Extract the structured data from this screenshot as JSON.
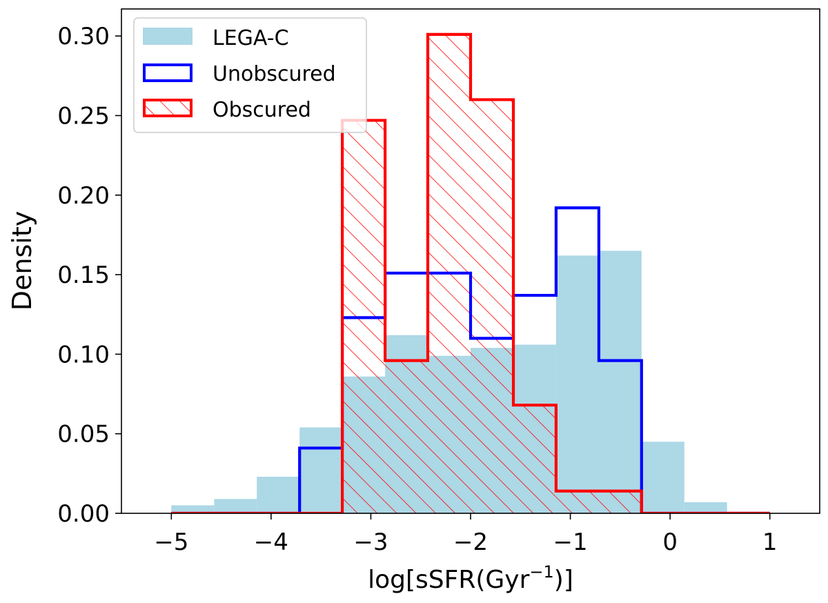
{
  "chart_data": {
    "type": "histogram",
    "xlabel": "log[sSFR(Gyr",
    "xlabel_sup": "−1",
    "xlabel_end": ")]",
    "ylabel": "Density",
    "xlim": [
      -5.5,
      1.5
    ],
    "ylim": [
      0.0,
      0.317
    ],
    "xticks": [
      -5,
      -4,
      -3,
      -2,
      -1,
      0,
      1
    ],
    "xtick_labels": [
      "−5",
      "−4",
      "−3",
      "−2",
      "−1",
      "0",
      "1"
    ],
    "yticks": [
      0.0,
      0.05,
      0.1,
      0.15,
      0.2,
      0.25,
      0.3
    ],
    "ytick_labels": [
      "0.00",
      "0.05",
      "0.10",
      "0.15",
      "0.20",
      "0.25",
      "0.30"
    ],
    "legend_position": "top-left",
    "series": [
      {
        "name": "LEGA-C",
        "style": "filled",
        "color": "#add8e6",
        "bin_edges": [
          -5.0,
          -4.571,
          -4.143,
          -3.714,
          -3.286,
          -2.857,
          -2.429,
          -2.0,
          -1.571,
          -1.143,
          -0.714,
          -0.286,
          0.143,
          0.571,
          1.0
        ],
        "values": [
          0.005,
          0.009,
          0.023,
          0.054,
          0.086,
          0.112,
          0.099,
          0.104,
          0.106,
          0.162,
          0.165,
          0.045,
          0.007,
          0.001
        ]
      },
      {
        "name": "Unobscured",
        "style": "step",
        "color": "#0000ff",
        "bin_edges": [
          -5.0,
          -4.571,
          -4.143,
          -3.714,
          -3.286,
          -2.857,
          -2.429,
          -2.0,
          -1.571,
          -1.143,
          -0.714,
          -0.286,
          0.143,
          0.571,
          1.0
        ],
        "values": [
          0.0,
          0.0,
          0.0,
          0.041,
          0.123,
          0.151,
          0.151,
          0.11,
          0.137,
          0.192,
          0.096,
          0.0,
          0.0,
          0.0
        ]
      },
      {
        "name": "Obscured",
        "style": "hatched",
        "color": "#ff0000",
        "bin_edges": [
          -5.0,
          -4.571,
          -4.143,
          -3.714,
          -3.286,
          -2.857,
          -2.429,
          -2.0,
          -1.571,
          -1.143,
          -0.714,
          -0.286,
          0.143,
          0.571,
          1.0
        ],
        "values": [
          0.0,
          0.0,
          0.0,
          0.0,
          0.247,
          0.096,
          0.301,
          0.26,
          0.068,
          0.014,
          0.014,
          0.0,
          0.0,
          0.0
        ]
      }
    ]
  }
}
